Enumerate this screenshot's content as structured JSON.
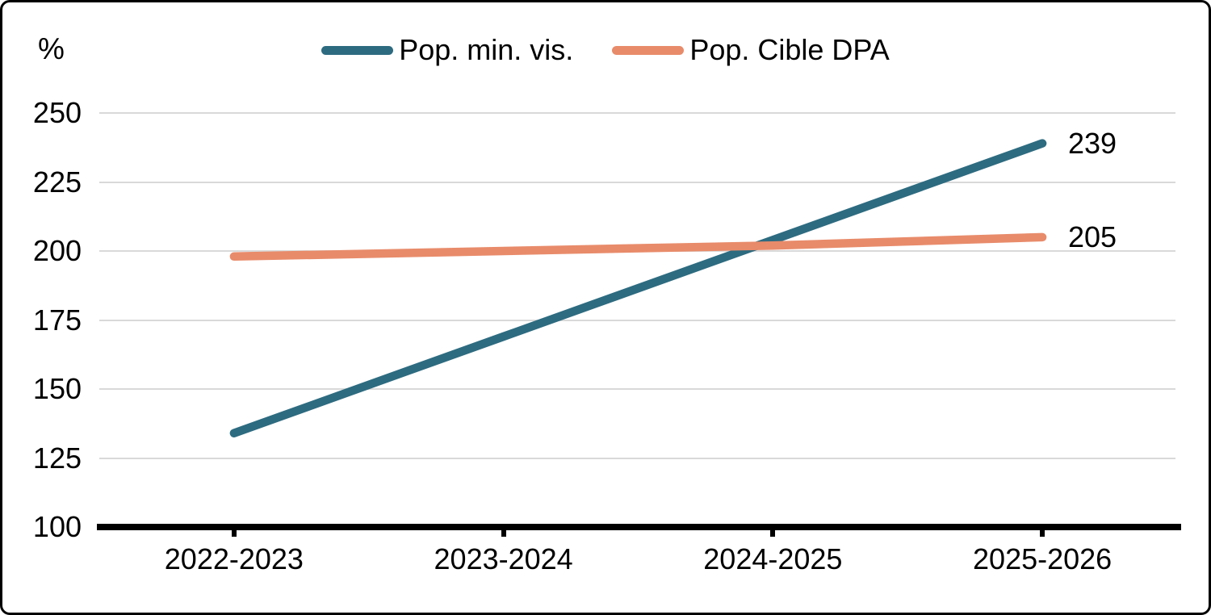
{
  "chart_data": {
    "type": "line",
    "title": "",
    "ylabel": "%",
    "xlabel": "",
    "ylim": [
      100,
      250
    ],
    "ytick_step": 25,
    "grid": "horizontal",
    "legend_position": "top-center",
    "categories": [
      "2022-2023",
      "2023-2024",
      "2024-2025",
      "2025-2026"
    ],
    "yticks": [
      "250",
      "225",
      "200",
      "175",
      "150",
      "125",
      "100"
    ],
    "series": [
      {
        "name": "Pop. min. vis.",
        "color": "#2d6b80",
        "values": [
          134,
          169,
          204,
          239
        ],
        "end_label": "239"
      },
      {
        "name": "Pop. Cible DPA",
        "color": "#e88b6a",
        "values": [
          198,
          200,
          202,
          205
        ],
        "end_label": "205"
      }
    ],
    "axis_color": "#000000",
    "gridline_color": "#d9d9d9"
  }
}
